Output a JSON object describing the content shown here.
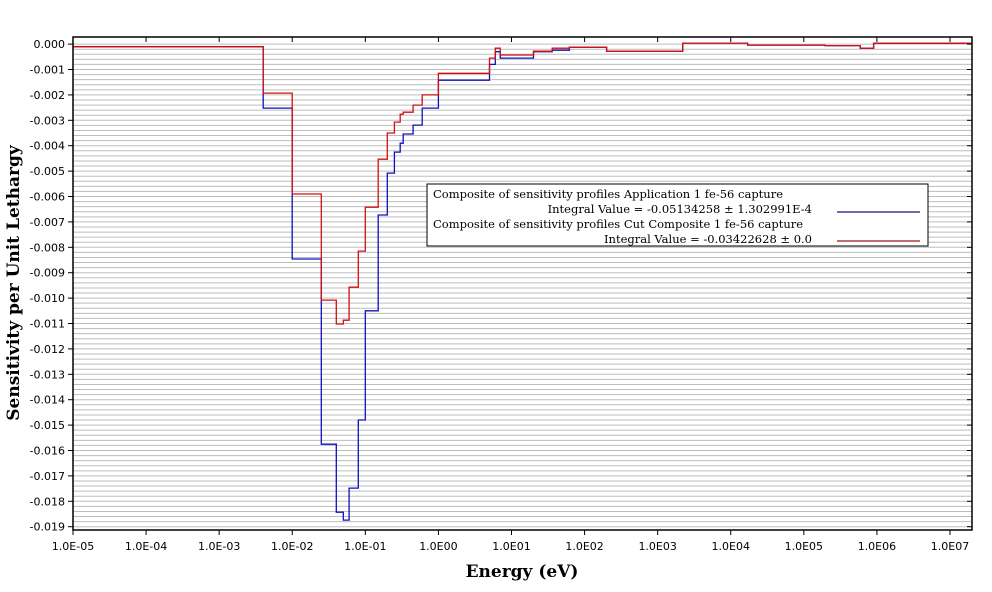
{
  "chart_data": {
    "type": "line",
    "step": true,
    "xscale": "log",
    "xlabel": "Energy (eV)",
    "ylabel": "Sensitivity per Unit Lethargy",
    "xlim": [
      1e-05,
      20000000.0
    ],
    "ylim": [
      -0.01913,
      0.00028
    ],
    "grid": true,
    "legend_position": "center-right",
    "x_ticks": [
      1e-05,
      0.0001,
      0.001,
      0.01,
      0.1,
      1,
      10,
      100,
      1000,
      10000.0,
      100000.0,
      1000000.0,
      10000000.0
    ],
    "x_tick_labels": [
      "1.0E-05",
      "1.0E-04",
      "1.0E-03",
      "1.0E-02",
      "1.0E-01",
      "1.0E00",
      "1.0E01",
      "1.0E02",
      "1.0E03",
      "1.0E04",
      "1.0E05",
      "1.0E06",
      "1.0E07"
    ],
    "y_ticks": [
      0,
      -0.001,
      -0.002,
      -0.003,
      -0.004,
      -0.005,
      -0.006,
      -0.007,
      -0.008,
      -0.009,
      -0.01,
      -0.011,
      -0.012,
      -0.013,
      -0.014,
      -0.015,
      -0.016,
      -0.017,
      -0.018,
      -0.019
    ],
    "y_tick_labels": [
      "0.000",
      "-0.001",
      "-0.002",
      "-0.003",
      "-0.004",
      "-0.005",
      "-0.006",
      "-0.007",
      "-0.008",
      "-0.009",
      "-0.010",
      "-0.011",
      "-0.012",
      "-0.013",
      "-0.014",
      "-0.015",
      "-0.016",
      "-0.017",
      "-0.018",
      "-0.019"
    ],
    "bin_edges": [
      1e-05,
      0.004,
      0.01,
      0.025,
      0.04,
      0.05,
      0.06,
      0.08,
      0.1,
      0.15,
      0.2,
      0.25,
      0.3,
      0.33,
      0.45,
      0.6,
      1.0,
      5,
      6,
      7,
      20,
      36,
      62,
      200,
      2200,
      17000,
      195000,
      590000,
      900000,
      20000000.0
    ],
    "series": [
      {
        "name": "Composite of sensitivity profiles Application 1 fe-56 capture",
        "integral": "Integral Value = -0.05134258 ± 1.302991E-4",
        "color": "#1010c0",
        "values": [
          -0.0001,
          -0.00252,
          -0.00846,
          -0.01575,
          -0.01843,
          -0.01874,
          -0.01748,
          -0.0148,
          -0.0105,
          -0.00673,
          -0.00508,
          -0.00425,
          -0.0039,
          -0.00354,
          -0.00319,
          -0.00252,
          -0.00142,
          -0.0008,
          -0.0003,
          -0.00055,
          -0.0003,
          -0.00024,
          -0.00012,
          -0.00028,
          4e-05,
          -4e-05,
          -6e-05,
          -0.00016,
          3e-05
        ]
      },
      {
        "name": "Composite of sensitivity profiles Cut Composite 1 fe-56 capture",
        "integral": "Integral Value = -0.03422628 ± 0.0",
        "color": "#d01010",
        "values": [
          -0.0001,
          -0.00193,
          -0.0059,
          -0.01008,
          -0.01102,
          -0.01087,
          -0.00957,
          -0.00815,
          -0.00642,
          -0.00453,
          -0.0035,
          -0.00307,
          -0.00276,
          -0.00268,
          -0.0024,
          -0.002,
          -0.00115,
          -0.00055,
          -0.00016,
          -0.00043,
          -0.00028,
          -0.00016,
          -0.00012,
          -0.00028,
          4e-05,
          -4e-05,
          -6e-05,
          -0.00016,
          3e-05
        ]
      }
    ]
  }
}
